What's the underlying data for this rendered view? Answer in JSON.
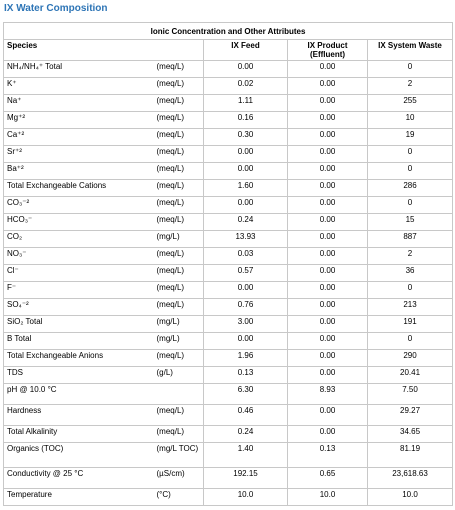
{
  "header": {
    "title": "IX Water Composition"
  },
  "table": {
    "caption": "Ionic Concentration and Other Attributes",
    "columns": [
      "Species",
      "IX Feed",
      "IX Product (Effluent)",
      "IX System Waste"
    ],
    "rows": [
      {
        "species": "NH₄/NH₄⁺ Total",
        "unit": "(meq/L)",
        "feed": "0.00",
        "product": "0.00",
        "waste": "0"
      },
      {
        "species": "K⁺",
        "unit": "(meq/L)",
        "feed": "0.02",
        "product": "0.00",
        "waste": "2"
      },
      {
        "species": "Na⁺",
        "unit": "(meq/L)",
        "feed": "1.11",
        "product": "0.00",
        "waste": "255"
      },
      {
        "species": "Mg⁺²",
        "unit": "(meq/L)",
        "feed": "0.16",
        "product": "0.00",
        "waste": "10"
      },
      {
        "species": "Ca⁺²",
        "unit": "(meq/L)",
        "feed": "0.30",
        "product": "0.00",
        "waste": "19"
      },
      {
        "species": "Sr⁺²",
        "unit": "(meq/L)",
        "feed": "0.00",
        "product": "0.00",
        "waste": "0"
      },
      {
        "species": "Ba⁺²",
        "unit": "(meq/L)",
        "feed": "0.00",
        "product": "0.00",
        "waste": "0"
      },
      {
        "species": "Total Exchangeable Cations",
        "unit": "(meq/L)",
        "feed": "1.60",
        "product": "0.00",
        "waste": "286"
      },
      {
        "species": "CO₃⁻²",
        "unit": "(meq/L)",
        "feed": "0.00",
        "product": "0.00",
        "waste": "0"
      },
      {
        "species": "HCO₃⁻",
        "unit": "(meq/L)",
        "feed": "0.24",
        "product": "0.00",
        "waste": "15"
      },
      {
        "species": "CO₂",
        "unit": "(mg/L)",
        "feed": "13.93",
        "product": "0.00",
        "waste": "887"
      },
      {
        "species": "NO₃⁻",
        "unit": "(meq/L)",
        "feed": "0.03",
        "product": "0.00",
        "waste": "2"
      },
      {
        "species": "Cl⁻",
        "unit": "(meq/L)",
        "feed": "0.57",
        "product": "0.00",
        "waste": "36"
      },
      {
        "species": "F⁻",
        "unit": "(meq/L)",
        "feed": "0.00",
        "product": "0.00",
        "waste": "0"
      },
      {
        "species": "SO₄⁻²",
        "unit": "(meq/L)",
        "feed": "0.76",
        "product": "0.00",
        "waste": "213"
      },
      {
        "species": "SiO₂ Total",
        "unit": "(mg/L)",
        "feed": "3.00",
        "product": "0.00",
        "waste": "191"
      },
      {
        "species": "B Total",
        "unit": "(mg/L)",
        "feed": "0.00",
        "product": "0.00",
        "waste": "0"
      },
      {
        "species": "Total Exchangeable Anions",
        "unit": "(meq/L)",
        "feed": "1.96",
        "product": "0.00",
        "waste": "290"
      },
      {
        "species": "TDS",
        "unit": "(g/L)",
        "feed": "0.13",
        "product": "0.00",
        "waste": "20.41"
      },
      {
        "species": "pH @ 10.0 °C",
        "feed": "6.30",
        "product": "8.93",
        "waste": "7.50"
      },
      {
        "species": "Hardness",
        "unit": "(meq/L)",
        "feed": "0.46",
        "product": "0.00",
        "waste": "29.27"
      },
      {
        "species": "Total Alkalinity",
        "unit": "(meq/L)",
        "feed": "0.24",
        "product": "0.00",
        "waste": "34.65"
      },
      {
        "species": "Organics (TOC)",
        "unit": "(mg/L TOC)",
        "feed": "1.40",
        "product": "0.13",
        "waste": "81.19"
      },
      {
        "species": "Conductivity @ 25 °C",
        "unit": "(µS/cm)",
        "feed": "192.15",
        "product": "0.65",
        "waste": "23,618.63"
      },
      {
        "species": "Temperature",
        "unit": "(°C)",
        "feed": "10.0",
        "product": "10.0",
        "waste": "10.0"
      }
    ]
  }
}
